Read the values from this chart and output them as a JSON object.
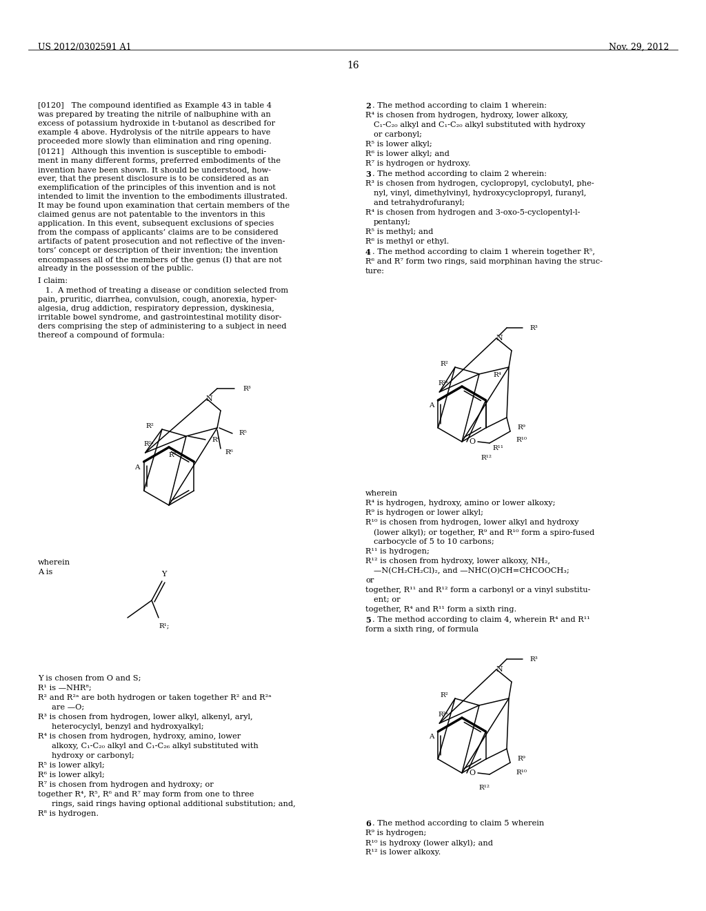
{
  "header_left": "US 2012/0302591 A1",
  "header_right": "Nov. 29, 2012",
  "page_number": "16",
  "bg": "#ffffff"
}
